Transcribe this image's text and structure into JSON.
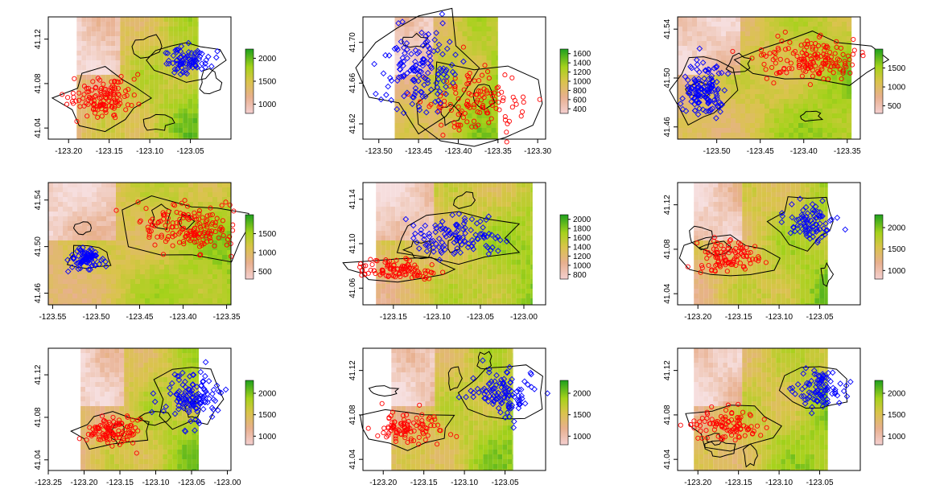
{
  "figure": {
    "background": "#ffffff",
    "colors": {
      "site_a": "#ff0000",
      "site_b": "#0000ff",
      "outline": "#000000"
    }
  },
  "chart_data": [
    {
      "type": "scatter",
      "title": "",
      "xlim": [
        -123.225,
        -123.0
      ],
      "ylim": [
        41.03,
        41.14
      ],
      "x_ticks": [
        "-123.20",
        "-123.15",
        "-123.10",
        "-123.05"
      ],
      "x_tick_values": [
        -123.2,
        -123.15,
        -123.1,
        -123.05
      ],
      "y_ticks": [
        "41.04",
        "41.08",
        "41.12"
      ],
      "y_tick_values": [
        41.04,
        41.08,
        41.12
      ],
      "raster_x": [
        -123.19,
        -123.04
      ],
      "raster_y": [
        41.03,
        41.14
      ],
      "legend_ticks": [
        "1000",
        "1500",
        "2000"
      ],
      "legend_values": [
        1000,
        1500,
        2000
      ],
      "legend_range": [
        800,
        2200
      ],
      "series": [
        {
          "marker": "circle",
          "color": "#ff0000",
          "cx": -123.155,
          "cy": 41.067,
          "sx": 0.02,
          "sy": 0.009,
          "n": 130
        },
        {
          "marker": "diamond",
          "color": "#0000ff",
          "cx": -123.055,
          "cy": 41.101,
          "sx": 0.015,
          "sy": 0.006,
          "n": 80
        }
      ]
    },
    {
      "type": "scatter",
      "title": "",
      "xlim": [
        -123.52,
        -123.29
      ],
      "ylim": [
        41.605,
        41.725
      ],
      "x_ticks": [
        "-123.50",
        "-123.45",
        "-123.40",
        "-123.35",
        "-123.30"
      ],
      "x_tick_values": [
        -123.5,
        -123.45,
        -123.4,
        -123.35,
        -123.3
      ],
      "y_ticks": [
        "41.62",
        "41.66",
        "41.70"
      ],
      "y_tick_values": [
        41.62,
        41.66,
        41.7
      ],
      "raster_x": [
        -123.48,
        -123.35
      ],
      "raster_y": [
        41.605,
        41.725
      ],
      "legend_ticks": [
        "400",
        "600",
        "800",
        "1000",
        "1200",
        "1400",
        "1600"
      ],
      "legend_values": [
        400,
        600,
        800,
        1000,
        1200,
        1400,
        1600
      ],
      "legend_range": [
        300,
        1700
      ],
      "series": [
        {
          "marker": "circle",
          "color": "#ff0000",
          "cx": -123.38,
          "cy": 41.64,
          "sx": 0.03,
          "sy": 0.015,
          "n": 120
        },
        {
          "marker": "diamond",
          "color": "#0000ff",
          "cx": -123.45,
          "cy": 41.675,
          "sx": 0.025,
          "sy": 0.02,
          "n": 140
        }
      ]
    },
    {
      "type": "scatter",
      "title": "",
      "xlim": [
        -123.545,
        -123.335
      ],
      "ylim": [
        41.45,
        41.55
      ],
      "x_ticks": [
        "-123.50",
        "-123.45",
        "-123.40",
        "-123.35"
      ],
      "x_tick_values": [
        -123.5,
        -123.45,
        -123.4,
        -123.35
      ],
      "y_ticks": [
        "41.46",
        "41.50",
        "41.54"
      ],
      "y_tick_values": [
        41.46,
        41.5,
        41.54
      ],
      "raster_x": [
        -123.545,
        -123.345
      ],
      "raster_y": [
        41.45,
        41.55
      ],
      "legend_ticks": [
        "500",
        "1000",
        "1500"
      ],
      "legend_values": [
        500,
        1000,
        1500
      ],
      "legend_range": [
        300,
        2000
      ],
      "series": [
        {
          "marker": "circle",
          "color": "#ff0000",
          "cx": -123.39,
          "cy": 41.515,
          "sx": 0.028,
          "sy": 0.008,
          "n": 160
        },
        {
          "marker": "diamond",
          "color": "#0000ff",
          "cx": -123.515,
          "cy": 41.49,
          "sx": 0.012,
          "sy": 0.011,
          "n": 130
        }
      ]
    },
    {
      "type": "scatter",
      "title": "",
      "xlim": [
        -123.555,
        -123.345
      ],
      "ylim": [
        41.45,
        41.555
      ],
      "x_ticks": [
        "-123.55",
        "-123.50",
        "-123.45",
        "-123.40",
        "-123.35"
      ],
      "x_tick_values": [
        -123.55,
        -123.5,
        -123.45,
        -123.4,
        -123.35
      ],
      "y_ticks": [
        "41.46",
        "41.50",
        "41.54"
      ],
      "y_tick_values": [
        41.46,
        41.5,
        41.54
      ],
      "raster_x": [
        -123.555,
        -123.345
      ],
      "raster_y": [
        41.45,
        41.555
      ],
      "legend_ticks": [
        "500",
        "1000",
        "1500"
      ],
      "legend_values": [
        500,
        1000,
        1500
      ],
      "legend_range": [
        300,
        2000
      ],
      "series": [
        {
          "marker": "circle",
          "color": "#ff0000",
          "cx": -123.39,
          "cy": 41.515,
          "sx": 0.028,
          "sy": 0.01,
          "n": 170
        },
        {
          "marker": "diamond",
          "color": "#0000ff",
          "cx": -123.51,
          "cy": 41.49,
          "sx": 0.01,
          "sy": 0.004,
          "n": 90
        }
      ]
    },
    {
      "type": "scatter",
      "title": "",
      "xlim": [
        -123.185,
        -122.975
      ],
      "ylim": [
        41.045,
        41.155
      ],
      "x_ticks": [
        "-123.15",
        "-123.10",
        "-123.05",
        "-123.00"
      ],
      "x_tick_values": [
        -123.15,
        -123.1,
        -123.05,
        -123.0
      ],
      "y_ticks": [
        "41.06",
        "41.10",
        "41.14"
      ],
      "y_tick_values": [
        41.06,
        41.1,
        41.14
      ],
      "raster_x": [
        -123.17,
        -122.99
      ],
      "raster_y": [
        41.045,
        41.155
      ],
      "legend_ticks": [
        "800",
        "1000",
        "1200",
        "1400",
        "1600",
        "1800",
        "2000"
      ],
      "legend_values": [
        800,
        1000,
        1200,
        1400,
        1600,
        1800,
        2000
      ],
      "legend_range": [
        700,
        2100
      ],
      "series": [
        {
          "marker": "circle",
          "color": "#ff0000",
          "cx": -123.145,
          "cy": 41.077,
          "sx": 0.025,
          "sy": 0.004,
          "n": 110
        },
        {
          "marker": "diamond",
          "color": "#0000ff",
          "cx": -123.075,
          "cy": 41.105,
          "sx": 0.025,
          "sy": 0.008,
          "n": 110
        }
      ]
    },
    {
      "type": "scatter",
      "title": "",
      "xlim": [
        -123.225,
        -123.0
      ],
      "ylim": [
        41.03,
        41.14
      ],
      "x_ticks": [
        "-123.20",
        "-123.15",
        "-123.10",
        "-123.05"
      ],
      "x_tick_values": [
        -123.2,
        -123.15,
        -123.1,
        -123.05
      ],
      "y_ticks": [
        "41.04",
        "41.08",
        "41.12"
      ],
      "y_tick_values": [
        41.04,
        41.08,
        41.12
      ],
      "raster_x": [
        -123.205,
        -123.04
      ],
      "raster_y": [
        41.03,
        41.14
      ],
      "legend_ticks": [
        "1000",
        "1500",
        "2000"
      ],
      "legend_values": [
        1000,
        1500,
        2000
      ],
      "legend_range": [
        800,
        2300
      ],
      "series": [
        {
          "marker": "circle",
          "color": "#ff0000",
          "cx": -123.16,
          "cy": 41.072,
          "sx": 0.02,
          "sy": 0.007,
          "n": 100
        },
        {
          "marker": "diamond",
          "color": "#0000ff",
          "cx": -123.065,
          "cy": 41.105,
          "sx": 0.015,
          "sy": 0.008,
          "n": 80
        }
      ]
    },
    {
      "type": "scatter",
      "title": "",
      "xlim": [
        -123.25,
        -122.995
      ],
      "ylim": [
        41.03,
        41.145
      ],
      "x_ticks": [
        "-123.25",
        "-123.20",
        "-123.15",
        "-123.10",
        "-123.05",
        "-123.00"
      ],
      "x_tick_values": [
        -123.25,
        -123.2,
        -123.15,
        -123.1,
        -123.05,
        -123.0
      ],
      "y_ticks": [
        "41.04",
        "41.08",
        "41.12"
      ],
      "y_tick_values": [
        41.04,
        41.08,
        41.12
      ],
      "raster_x": [
        -123.205,
        -123.04
      ],
      "raster_y": [
        41.03,
        41.145
      ],
      "legend_ticks": [
        "1000",
        "1500",
        "2000"
      ],
      "legend_values": [
        1000,
        1500,
        2000
      ],
      "legend_range": [
        800,
        2300
      ],
      "series": [
        {
          "marker": "circle",
          "color": "#ff0000",
          "cx": -123.16,
          "cy": 41.067,
          "sx": 0.02,
          "sy": 0.006,
          "n": 110
        },
        {
          "marker": "diamond",
          "color": "#0000ff",
          "cx": -123.05,
          "cy": 41.097,
          "sx": 0.018,
          "sy": 0.011,
          "n": 120
        }
      ]
    },
    {
      "type": "scatter",
      "title": "",
      "xlim": [
        -123.225,
        -123.0
      ],
      "ylim": [
        41.03,
        41.14
      ],
      "x_ticks": [
        "-123.20",
        "-123.15",
        "-123.10",
        "-123.05"
      ],
      "x_tick_values": [
        -123.2,
        -123.15,
        -123.1,
        -123.05
      ],
      "y_ticks": [
        "41.04",
        "41.08",
        "41.12"
      ],
      "y_tick_values": [
        41.04,
        41.08,
        41.12
      ],
      "raster_x": [
        -123.19,
        -123.04
      ],
      "raster_y": [
        41.03,
        41.14
      ],
      "legend_ticks": [
        "1000",
        "1500",
        "2000"
      ],
      "legend_values": [
        1000,
        1500,
        2000
      ],
      "legend_range": [
        800,
        2300
      ],
      "series": [
        {
          "marker": "circle",
          "color": "#ff0000",
          "cx": -123.17,
          "cy": 41.068,
          "sx": 0.02,
          "sy": 0.007,
          "n": 100
        },
        {
          "marker": "diamond",
          "color": "#0000ff",
          "cx": -123.05,
          "cy": 41.1,
          "sx": 0.018,
          "sy": 0.01,
          "n": 110
        }
      ]
    },
    {
      "type": "scatter",
      "title": "",
      "xlim": [
        -123.225,
        -123.0
      ],
      "ylim": [
        41.03,
        41.14
      ],
      "x_ticks": [
        "-123.20",
        "-123.15",
        "-123.10",
        "-123.05"
      ],
      "x_tick_values": [
        -123.2,
        -123.15,
        -123.1,
        -123.05
      ],
      "y_ticks": [
        "41.04",
        "41.08",
        "41.12"
      ],
      "y_tick_values": [
        41.04,
        41.08,
        41.12
      ],
      "raster_x": [
        -123.205,
        -123.04
      ],
      "raster_y": [
        41.03,
        41.14
      ],
      "legend_ticks": [
        "1000",
        "1500",
        "2000"
      ],
      "legend_values": [
        1000,
        1500,
        2000
      ],
      "legend_range": [
        800,
        2300
      ],
      "series": [
        {
          "marker": "circle",
          "color": "#ff0000",
          "cx": -123.16,
          "cy": 41.07,
          "sx": 0.02,
          "sy": 0.007,
          "n": 100
        },
        {
          "marker": "diamond",
          "color": "#0000ff",
          "cx": -123.05,
          "cy": 41.102,
          "sx": 0.015,
          "sy": 0.008,
          "n": 90
        }
      ]
    }
  ]
}
